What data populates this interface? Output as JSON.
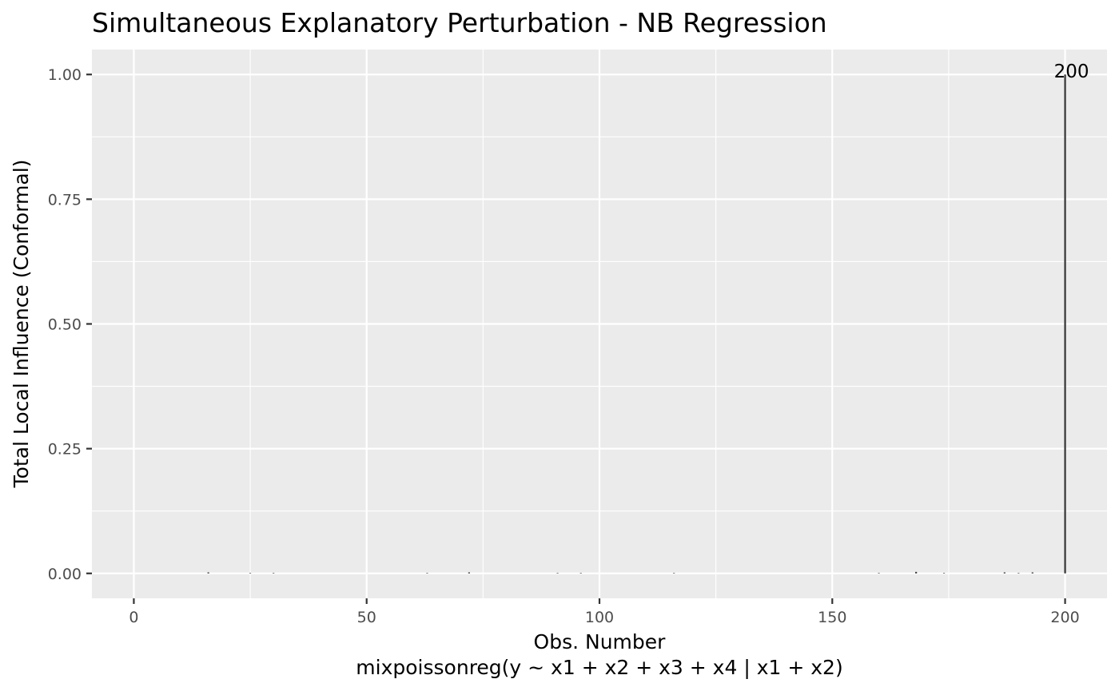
{
  "chart_data": {
    "type": "bar",
    "subtype": "lollipop-needle",
    "title": "Simultaneous Explanatory Perturbation - NB Regression",
    "xlabel": "Obs. Number",
    "xlabel_sub": "mixpoissonreg(y ~ x1 + x2 + x3 + x4 | x1 + x2)",
    "ylabel": "Total Local Influence (Conformal)",
    "xlim": [
      -9,
      209
    ],
    "ylim": [
      -0.05,
      1.05
    ],
    "xticks": [
      0,
      50,
      100,
      150,
      200
    ],
    "xtick_labels": [
      "0",
      "50",
      "100",
      "150",
      "200"
    ],
    "yticks": [
      0,
      0.25,
      0.5,
      0.75,
      1
    ],
    "ytick_labels": [
      "0.00",
      "0.25",
      "0.50",
      "0.75",
      "1.00"
    ],
    "grid": true,
    "background": "#ebebeb",
    "grid_color": "#ffffff",
    "bar_color": "#333333",
    "series": [
      {
        "x": [
          16,
          25,
          30,
          63,
          72,
          91,
          96,
          116,
          160,
          168,
          174,
          187,
          190,
          193,
          200
        ],
        "values": [
          0.002,
          0.001,
          0.001,
          0.001,
          0.002,
          0.001,
          0.001,
          0.001,
          0.001,
          0.003,
          0.001,
          0.002,
          0.001,
          0.002,
          1.0
        ]
      }
    ],
    "annotations": [
      {
        "x": 200,
        "y": 1.0,
        "text": "200"
      }
    ]
  }
}
